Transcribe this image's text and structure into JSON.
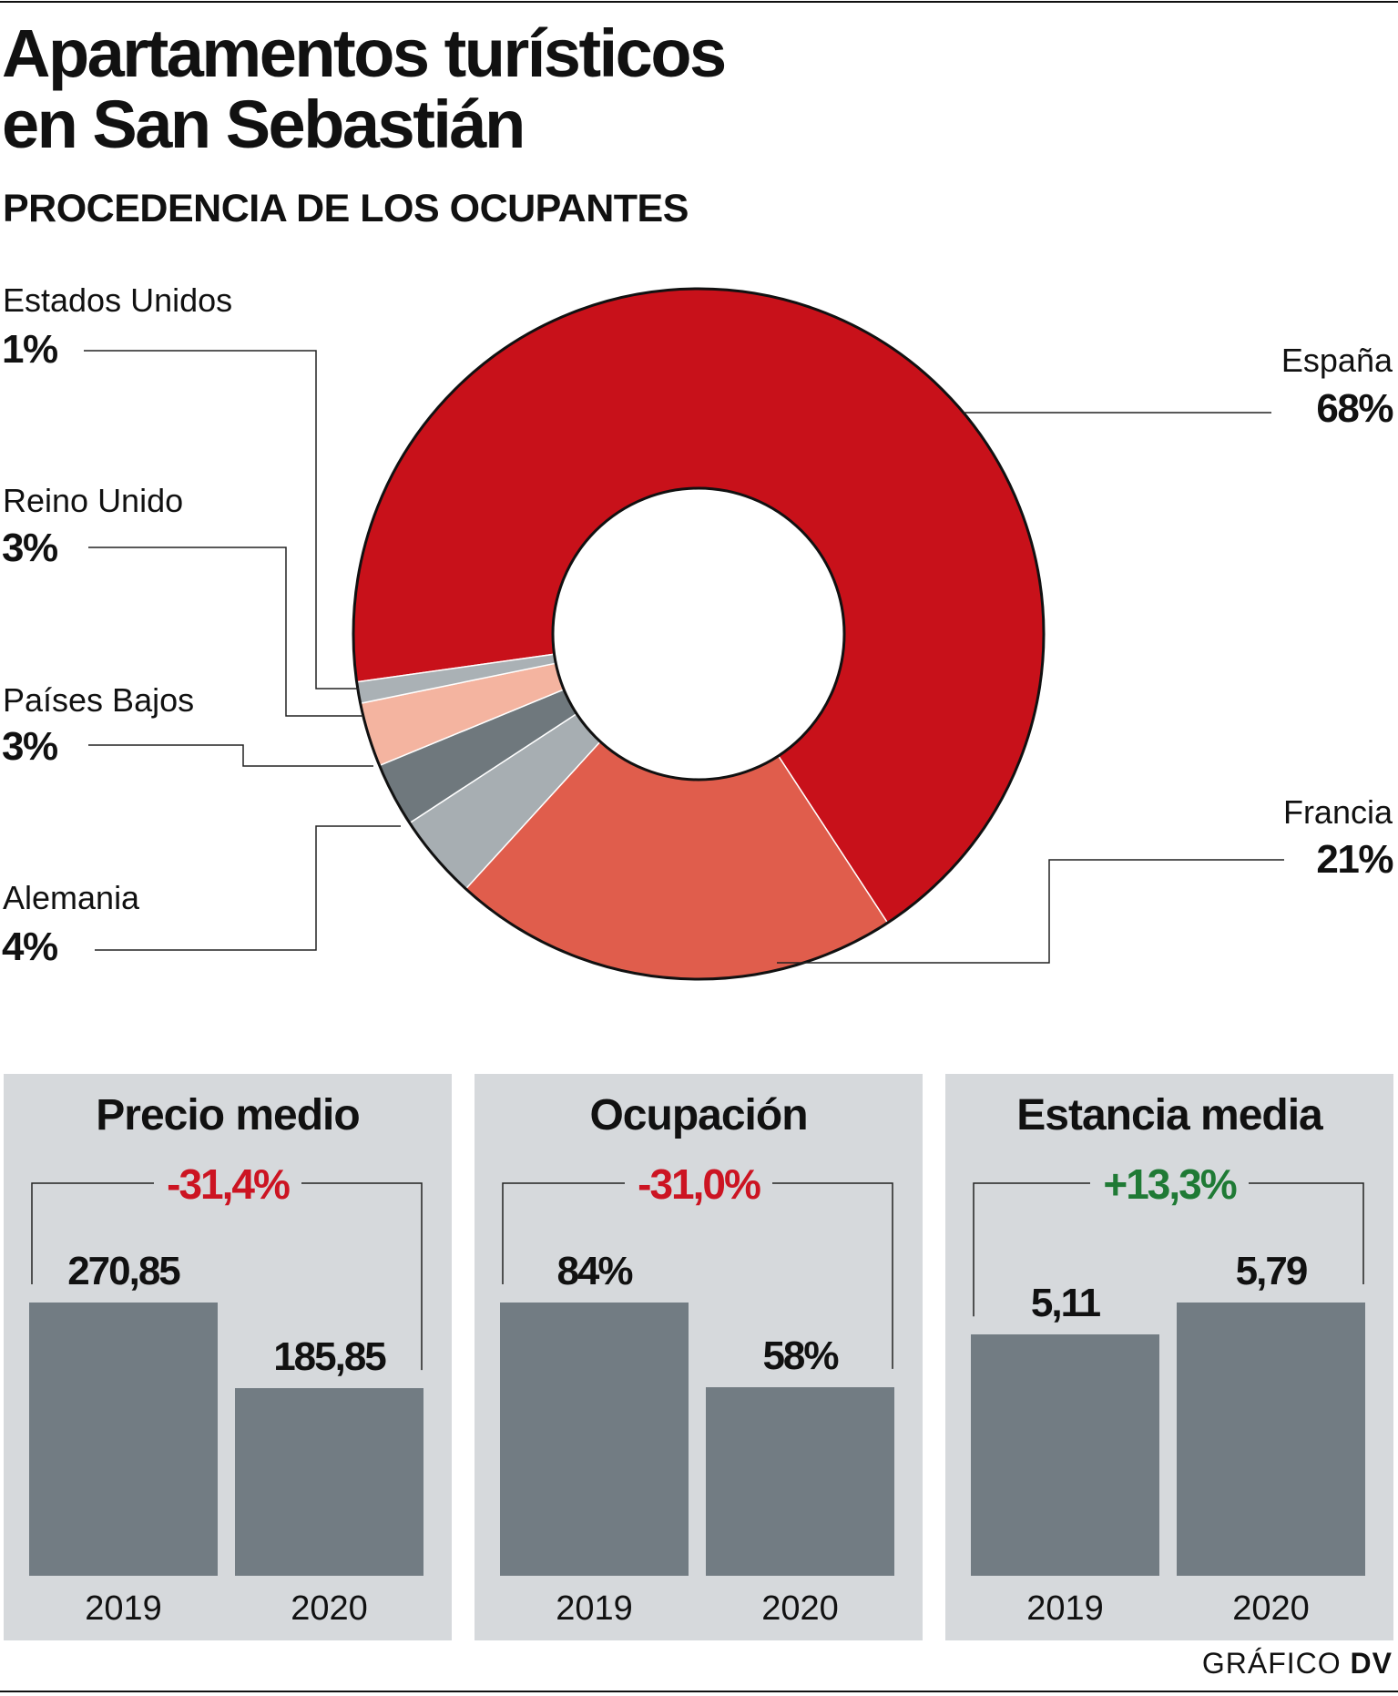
{
  "header": {
    "title_line1": "Apartamentos turísticos",
    "title_line2": "en San Sebastián",
    "subtitle": "PROCEDENCIA DE LOS OCUPANTES"
  },
  "chart_data": [
    {
      "type": "pie",
      "donut": true,
      "title": "PROCEDENCIA DE LOS OCUPANTES",
      "slices": [
        {
          "label": "España",
          "value": 68,
          "display": "68%",
          "color": "#c8111a"
        },
        {
          "label": "Francia",
          "value": 21,
          "display": "21%",
          "color": "#e05d4c"
        },
        {
          "label": "Alemania",
          "value": 4,
          "display": "4%",
          "color": "#a7aeb2"
        },
        {
          "label": "Países Bajos",
          "value": 3,
          "display": "3%",
          "color": "#6f787d"
        },
        {
          "label": "Reino Unido",
          "value": 3,
          "display": "3%",
          "color": "#f4b4a0"
        },
        {
          "label": "Estados Unidos",
          "value": 1,
          "display": "1%",
          "color": "#aab1b5"
        }
      ]
    },
    {
      "type": "bar",
      "title": "Precio medio",
      "change": "-31,4%",
      "change_color": "#cc1422",
      "categories": [
        "2019",
        "2020"
      ],
      "values": [
        270.85,
        185.85
      ],
      "labels": [
        "270,85",
        "185,85"
      ]
    },
    {
      "type": "bar",
      "title": "Ocupación",
      "change": "-31,0%",
      "change_color": "#cc1422",
      "categories": [
        "2019",
        "2020"
      ],
      "values": [
        84,
        58
      ],
      "labels": [
        "84%",
        "58%"
      ]
    },
    {
      "type": "bar",
      "title": "Estancia media",
      "change": "+13,3%",
      "change_color": "#1f7a35",
      "categories": [
        "2019",
        "2020"
      ],
      "values": [
        5.11,
        5.79
      ],
      "labels": [
        "5,11",
        "5,79"
      ]
    }
  ],
  "colors": {
    "bar": "#727c83",
    "panel": "#d6d9dc"
  },
  "footer": {
    "credit_light": "GRÁFICO",
    "credit_bold": "DV"
  }
}
